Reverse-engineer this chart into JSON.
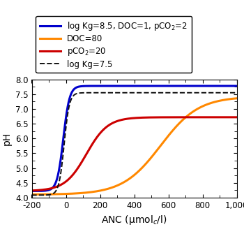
{
  "xlabel": "ANC (μmol$_c$/l)",
  "ylabel": "pH",
  "xlim": [
    -200,
    1000
  ],
  "ylim": [
    4.0,
    8.0
  ],
  "xticks": [
    -200,
    0,
    200,
    400,
    600,
    800,
    1000
  ],
  "yticks": [
    4.0,
    4.5,
    5.0,
    5.5,
    6.0,
    6.5,
    7.0,
    7.5,
    8.0
  ],
  "curves": [
    {
      "label": "log Kg=8.5, DOC=1, pCO$_2$=2",
      "color": "#0000cc",
      "linestyle": "solid",
      "linewidth": 2.2,
      "pH_low": 4.22,
      "pH_high": 7.78,
      "ANC_mid": -15,
      "steepness": 0.055
    },
    {
      "label": "DOC=80",
      "color": "#ff8800",
      "linestyle": "solid",
      "linewidth": 2.2,
      "pH_low": 4.1,
      "pH_high": 7.42,
      "ANC_mid": 555,
      "steepness": 0.009
    },
    {
      "label": "pCO$_2$=20",
      "color": "#cc0000",
      "linestyle": "solid",
      "linewidth": 2.2,
      "pH_low": 4.22,
      "pH_high": 6.72,
      "ANC_mid": 120,
      "steepness": 0.016
    },
    {
      "label": "log Kg=7.5",
      "color": "#111111",
      "linestyle": "dashed",
      "linewidth": 1.4,
      "pH_low": 4.08,
      "pH_high": 7.55,
      "ANC_mid": -10,
      "steepness": 0.065
    }
  ],
  "legend_fontsize": 8.5,
  "tick_fontsize": 8.5,
  "label_fontsize": 10,
  "background_color": "#ffffff"
}
